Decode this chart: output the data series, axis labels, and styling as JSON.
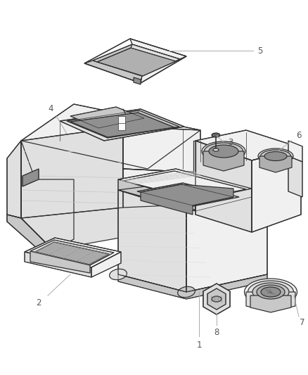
{
  "background_color": "#ffffff",
  "line_color": "#333333",
  "label_color": "#555555",
  "callout_line_color": "#aaaaaa",
  "label_fontsize": 8.5,
  "lw_main": 0.9,
  "lw_thin": 0.5,
  "fill_light": "#f0f0f0",
  "fill_mid": "#e0e0e0",
  "fill_dark": "#c8c8c8",
  "fill_darker": "#b0b0b0",
  "fill_darkest": "#909090",
  "fill_white": "#fafafa"
}
